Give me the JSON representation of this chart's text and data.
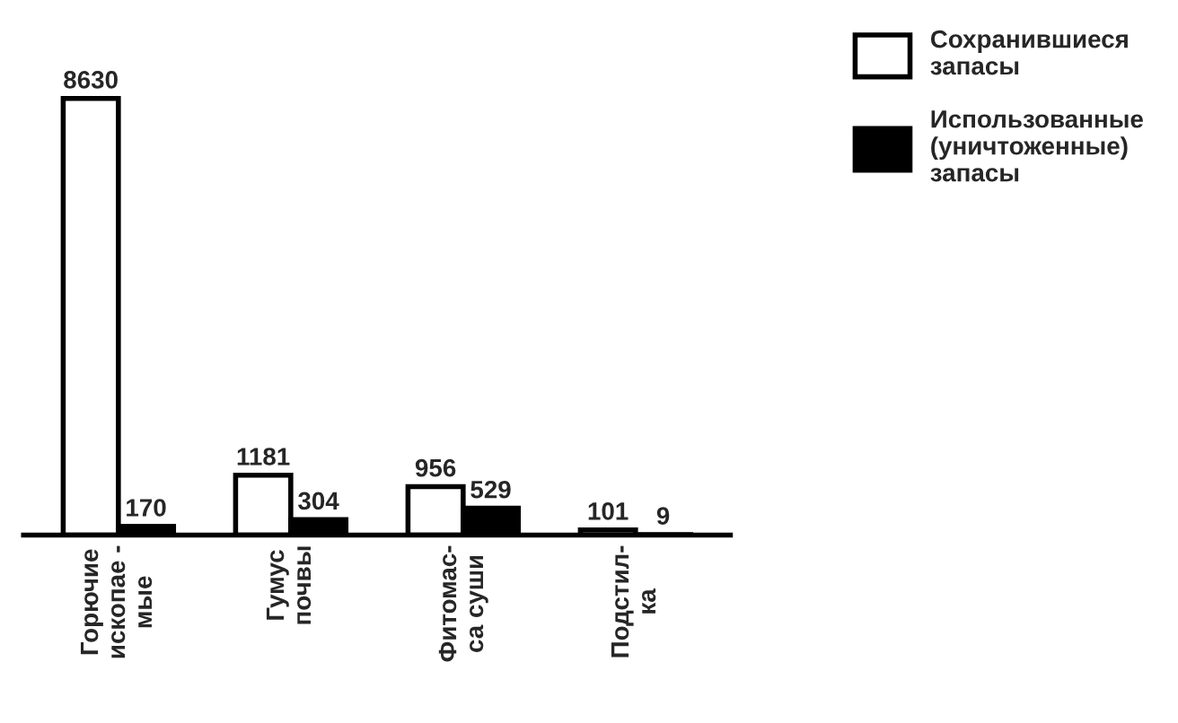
{
  "chart_data": {
    "type": "bar",
    "categories": [
      "Горючие\nископае -\nмые",
      "Гумус\nпочвы",
      "Фитомас-\nса суши",
      "Подстил-\nка"
    ],
    "series": [
      {
        "name": "Сохранившиеся\nзапасы",
        "color": "#ffffff",
        "values": [
          8630,
          1181,
          956,
          101
        ]
      },
      {
        "name": "Использованные\n(уничтоженные)\nзапасы",
        "color": "#000000",
        "values": [
          170,
          304,
          529,
          9
        ]
      }
    ],
    "data_labels": true,
    "legend": "top right",
    "grid": false
  }
}
